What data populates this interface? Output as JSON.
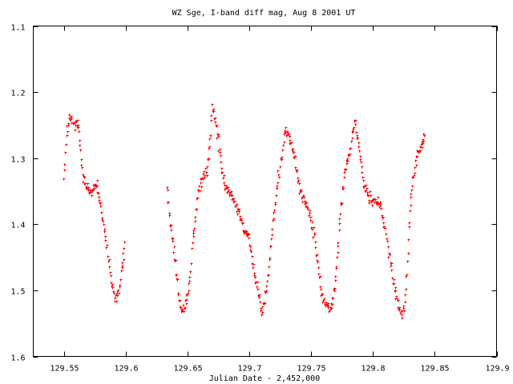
{
  "chart_data": {
    "type": "scatter",
    "title": "WZ Sge, I-band diff mag, Aug 8 2001 UT",
    "xlabel": "Julian Date - 2,452,000",
    "ylabel": "",
    "xlim": [
      129.525,
      129.9
    ],
    "ylim": [
      1.1,
      1.6
    ],
    "y_inverted": true,
    "grid": false,
    "x_ticks": [
      "129.55",
      "129.6",
      "129.65",
      "129.7",
      "129.75",
      "129.8",
      "129.85",
      "129.9"
    ],
    "y_ticks": [
      "1.1",
      "1.2",
      "1.3",
      "1.4",
      "1.5",
      "1.6"
    ],
    "marker_color": "#ff0000",
    "marker": "plus",
    "trend_points": [
      [
        129.5495,
        1.33
      ],
      [
        129.552,
        1.26
      ],
      [
        129.555,
        1.235
      ],
      [
        129.558,
        1.255
      ],
      [
        129.5595,
        1.235
      ],
      [
        129.5625,
        1.275
      ],
      [
        129.5645,
        1.33
      ],
      [
        129.568,
        1.345
      ],
      [
        129.572,
        1.35
      ],
      [
        129.576,
        1.34
      ],
      [
        129.579,
        1.37
      ],
      [
        129.583,
        1.42
      ],
      [
        129.5865,
        1.465
      ],
      [
        129.5895,
        1.505
      ],
      [
        129.592,
        1.51
      ],
      [
        129.594,
        1.5
      ],
      [
        129.5975,
        1.45
      ],
      [
        129.599,
        1.42
      ],
      [
        129.633,
        1.345
      ],
      [
        129.6345,
        1.38
      ],
      [
        129.637,
        1.42
      ],
      [
        129.6395,
        1.455
      ],
      [
        129.642,
        1.5
      ],
      [
        129.6445,
        1.53
      ],
      [
        129.647,
        1.525
      ],
      [
        129.6495,
        1.51
      ],
      [
        129.652,
        1.47
      ],
      [
        129.654,
        1.42
      ],
      [
        129.6565,
        1.38
      ],
      [
        129.659,
        1.34
      ],
      [
        129.662,
        1.33
      ],
      [
        129.665,
        1.32
      ],
      [
        129.6675,
        1.28
      ],
      [
        129.6695,
        1.22
      ],
      [
        129.672,
        1.245
      ],
      [
        129.6745,
        1.275
      ],
      [
        129.6775,
        1.32
      ],
      [
        129.68,
        1.345
      ],
      [
        129.6835,
        1.35
      ],
      [
        129.6875,
        1.365
      ],
      [
        129.6915,
        1.38
      ],
      [
        129.695,
        1.41
      ],
      [
        129.6995,
        1.42
      ],
      [
        129.703,
        1.465
      ],
      [
        129.7065,
        1.5
      ],
      [
        129.7095,
        1.53
      ],
      [
        129.7125,
        1.51
      ],
      [
        129.7145,
        1.48
      ],
      [
        129.7165,
        1.44
      ],
      [
        129.7195,
        1.385
      ],
      [
        129.723,
        1.33
      ],
      [
        129.7265,
        1.29
      ],
      [
        129.729,
        1.255
      ],
      [
        129.731,
        1.26
      ],
      [
        129.734,
        1.285
      ],
      [
        129.7365,
        1.305
      ],
      [
        129.7395,
        1.34
      ],
      [
        129.743,
        1.36
      ],
      [
        129.746,
        1.37
      ],
      [
        129.749,
        1.39
      ],
      [
        129.7525,
        1.42
      ],
      [
        129.755,
        1.46
      ],
      [
        129.7575,
        1.5
      ],
      [
        129.7605,
        1.52
      ],
      [
        129.763,
        1.525
      ],
      [
        129.7665,
        1.52
      ],
      [
        129.769,
        1.49
      ],
      [
        129.7705,
        1.45
      ],
      [
        129.7725,
        1.4
      ],
      [
        129.7745,
        1.36
      ],
      [
        129.777,
        1.32
      ],
      [
        129.7795,
        1.3
      ],
      [
        129.7825,
        1.27
      ],
      [
        129.7845,
        1.24
      ],
      [
        129.787,
        1.265
      ],
      [
        129.7895,
        1.3
      ],
      [
        129.792,
        1.34
      ],
      [
        129.7965,
        1.36
      ],
      [
        129.8015,
        1.365
      ],
      [
        129.8055,
        1.37
      ],
      [
        129.8085,
        1.4
      ],
      [
        129.8115,
        1.43
      ],
      [
        129.8145,
        1.465
      ],
      [
        129.8175,
        1.5
      ],
      [
        129.8205,
        1.525
      ],
      [
        129.823,
        1.54
      ],
      [
        129.8255,
        1.52
      ],
      [
        129.8275,
        1.46
      ],
      [
        129.8295,
        1.38
      ],
      [
        129.8315,
        1.34
      ],
      [
        129.834,
        1.305
      ],
      [
        129.8365,
        1.29
      ],
      [
        129.839,
        1.28
      ],
      [
        129.841,
        1.27
      ],
      [
        129.842,
        1.26
      ]
    ]
  }
}
